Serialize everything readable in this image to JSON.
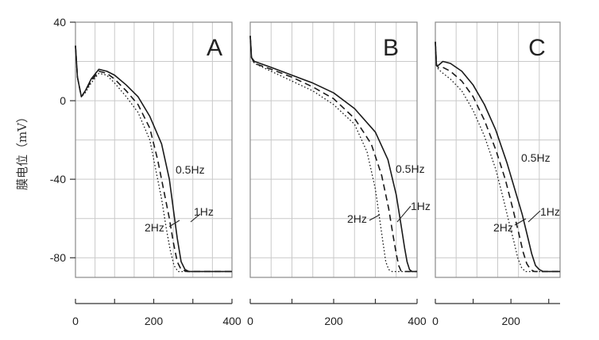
{
  "ylabel": "膜电位（mV）",
  "y_ticks": [
    "40",
    "0",
    "-40",
    "-80"
  ],
  "chart_data": [
    {
      "type": "line",
      "panel_label": "A",
      "xlabel": "",
      "ylabel": "膜电位（mV）",
      "xlim": [
        0,
        400
      ],
      "ylim": [
        -90,
        40
      ],
      "x_ticks": [
        "0",
        "200",
        "400"
      ],
      "grid": true,
      "series": [
        {
          "name": "0.5Hz",
          "dash": "solid",
          "x": [
            0,
            5,
            15,
            25,
            40,
            60,
            80,
            100,
            130,
            160,
            190,
            220,
            240,
            250,
            260,
            270,
            280,
            290,
            300,
            315,
            335,
            400
          ],
          "y": [
            28,
            12,
            2,
            5,
            11,
            16,
            15,
            13,
            8,
            2,
            -8,
            -22,
            -40,
            -55,
            -70,
            -82,
            -86,
            -87,
            -87,
            -87,
            -87,
            -87
          ]
        },
        {
          "name": "1Hz",
          "dash": "dashed",
          "x": [
            0,
            5,
            15,
            25,
            40,
            60,
            80,
            100,
            130,
            160,
            190,
            210,
            225,
            240,
            250,
            260,
            270,
            285,
            300,
            400
          ],
          "y": [
            28,
            12,
            2,
            5,
            10,
            15,
            14,
            11,
            5,
            -2,
            -14,
            -30,
            -45,
            -60,
            -72,
            -82,
            -86,
            -87,
            -87,
            -87
          ]
        },
        {
          "name": "2Hz",
          "dash": "dotted",
          "x": [
            0,
            5,
            15,
            25,
            40,
            60,
            80,
            100,
            130,
            160,
            190,
            205,
            220,
            232,
            242,
            252,
            262,
            275,
            300,
            400
          ],
          "y": [
            28,
            12,
            2,
            4,
            9,
            14,
            13,
            9,
            2,
            -6,
            -20,
            -35,
            -50,
            -65,
            -76,
            -84,
            -87,
            -87,
            -87,
            -87
          ]
        }
      ],
      "annotations": [
        "0.5Hz",
        "1Hz",
        "2Hz"
      ]
    },
    {
      "type": "line",
      "panel_label": "B",
      "xlabel": "",
      "ylabel": "",
      "xlim": [
        0,
        400
      ],
      "ylim": [
        -90,
        40
      ],
      "x_ticks": [
        "0",
        "200",
        "400"
      ],
      "grid": true,
      "series": [
        {
          "name": "0.5Hz",
          "dash": "solid",
          "x": [
            0,
            3,
            10,
            50,
            100,
            150,
            200,
            250,
            300,
            330,
            350,
            362,
            370,
            376,
            382,
            388,
            395,
            400
          ],
          "y": [
            33,
            22,
            20,
            17,
            13,
            9,
            4,
            -4,
            -16,
            -30,
            -48,
            -64,
            -75,
            -82,
            -86,
            -87,
            -87,
            -87
          ]
        },
        {
          "name": "1Hz",
          "dash": "dashed",
          "x": [
            0,
            3,
            10,
            50,
            100,
            150,
            200,
            250,
            290,
            315,
            332,
            342,
            350,
            356,
            362,
            370,
            400
          ],
          "y": [
            33,
            22,
            19,
            16,
            12,
            7,
            1,
            -9,
            -22,
            -38,
            -55,
            -68,
            -78,
            -84,
            -87,
            -87,
            -87
          ]
        },
        {
          "name": "2Hz",
          "dash": "dotted",
          "x": [
            0,
            3,
            10,
            50,
            100,
            150,
            200,
            250,
            280,
            300,
            310,
            318,
            325,
            332,
            340,
            400
          ],
          "y": [
            33,
            22,
            19,
            15,
            10,
            5,
            -2,
            -12,
            -26,
            -45,
            -60,
            -72,
            -82,
            -86,
            -87,
            -87
          ]
        }
      ],
      "annotations": [
        "0.5Hz",
        "1Hz",
        "2Hz"
      ]
    },
    {
      "type": "line",
      "panel_label": "C",
      "xlabel": "",
      "ylabel": "",
      "xlim": [
        0,
        330
      ],
      "ylim": [
        -90,
        40
      ],
      "x_ticks": [
        "0",
        "200"
      ],
      "grid": true,
      "series": [
        {
          "name": "0.5Hz",
          "dash": "solid",
          "x": [
            0,
            3,
            8,
            20,
            40,
            70,
            100,
            130,
            160,
            190,
            210,
            230,
            245,
            255,
            265,
            275,
            285,
            300,
            330
          ],
          "y": [
            30,
            18,
            18,
            20,
            19,
            15,
            8,
            -2,
            -15,
            -32,
            -45,
            -58,
            -70,
            -78,
            -84,
            -86,
            -87,
            -87,
            -87
          ]
        },
        {
          "name": "1Hz",
          "dash": "dashed",
          "x": [
            0,
            3,
            8,
            20,
            40,
            70,
            100,
            130,
            160,
            185,
            205,
            220,
            232,
            242,
            252,
            262,
            275,
            330
          ],
          "y": [
            30,
            18,
            17,
            17,
            15,
            10,
            2,
            -10,
            -25,
            -40,
            -55,
            -67,
            -77,
            -83,
            -86,
            -87,
            -87,
            -87
          ]
        },
        {
          "name": "2Hz",
          "dash": "dotted",
          "x": [
            0,
            3,
            8,
            20,
            40,
            70,
            100,
            130,
            160,
            180,
            195,
            208,
            218,
            228,
            238,
            250,
            330
          ],
          "y": [
            30,
            18,
            16,
            14,
            11,
            5,
            -5,
            -18,
            -35,
            -50,
            -62,
            -72,
            -80,
            -85,
            -87,
            -87,
            -87
          ]
        }
      ],
      "annotations": [
        "0.5Hz",
        "1Hz",
        "2Hz"
      ]
    }
  ]
}
